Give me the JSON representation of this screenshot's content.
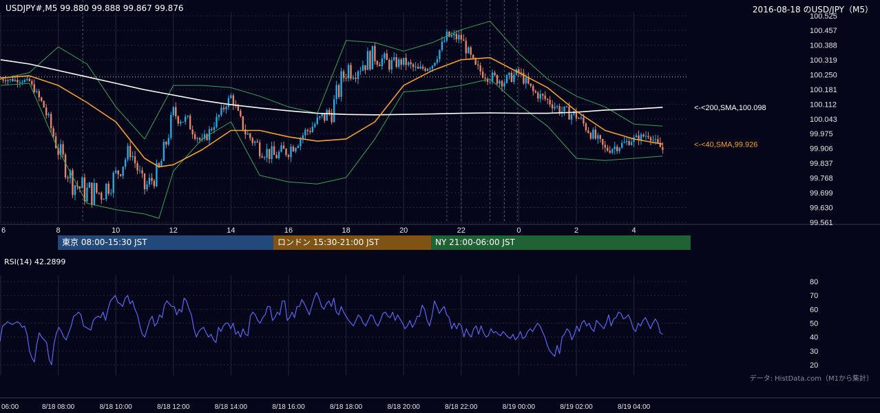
{
  "header": {
    "symbol_info": "USDJPY#,M5 99.880 99.888 99.867 99.876",
    "chart_title": "2016-08-18 のUSD/JPY（M5）"
  },
  "credit": "データ: HistData.com（M1から集計）",
  "colors": {
    "background": "#06061a",
    "candle_up": "#29a9e0",
    "candle_down": "#e2866a",
    "sma40": "#f4a233",
    "sma200": "#ffffff",
    "bollinger": "#3ea356",
    "rsi": "#5c66f0",
    "session_tokyo": "#23497a",
    "session_london": "#7e5314",
    "session_ny": "#1f6233"
  },
  "sessions": [
    {
      "label": "東京 08:00-15:30 JST",
      "color": "#23497a"
    },
    {
      "label": "ロンドン 15:30-21:00 JST",
      "color": "#7e5314"
    },
    {
      "label": "NY 21:00-06:00 JST",
      "color": "#1f6233"
    }
  ],
  "chart_data": [
    {
      "type": "candlestick",
      "ylim": [
        99.561,
        100.525
      ],
      "y_ticks": [
        "100.525",
        "100.457",
        "100.388",
        "100.319",
        "100.250",
        "100.181",
        "100.112",
        "100.043",
        "99.975",
        "99.906",
        "99.837",
        "99.768",
        "99.699",
        "99.630",
        "99.561"
      ],
      "x_ticks": [
        "6",
        "8",
        "10",
        "12",
        "14",
        "16",
        "18",
        "20",
        "22",
        "0",
        "2",
        "4"
      ],
      "reference_line": 100.24,
      "series": [
        {
          "name": "<-<200,SMA,100.098",
          "type": "line",
          "points": [
            [
              6,
              100.32
            ],
            [
              7,
              100.3
            ],
            [
              8,
              100.27
            ],
            [
              9,
              100.24
            ],
            [
              10,
              100.21
            ],
            [
              11,
              100.18
            ],
            [
              12,
              100.155
            ],
            [
              13,
              100.13
            ],
            [
              14,
              100.11
            ],
            [
              15,
              100.095
            ],
            [
              16,
              100.082
            ],
            [
              17,
              100.07
            ],
            [
              18,
              100.065
            ],
            [
              19,
              100.063
            ],
            [
              20,
              100.065
            ],
            [
              21,
              100.067
            ],
            [
              22,
              100.07
            ],
            [
              23,
              100.072
            ],
            [
              24,
              100.07
            ],
            [
              25,
              100.07
            ],
            [
              26,
              100.075
            ],
            [
              27,
              100.085
            ],
            [
              28,
              100.09
            ],
            [
              29,
              100.098
            ]
          ]
        },
        {
          "name": "<-<40,SMA,99.926",
          "type": "line",
          "points": [
            [
              6,
              100.235
            ],
            [
              7,
              100.245
            ],
            [
              8,
              100.2
            ],
            [
              9,
              100.12
            ],
            [
              10,
              100.03
            ],
            [
              11,
              99.86
            ],
            [
              11.5,
              99.82
            ],
            [
              12,
              99.83
            ],
            [
              13,
              99.9
            ],
            [
              14,
              99.99
            ],
            [
              15,
              99.99
            ],
            [
              16,
              99.96
            ],
            [
              17,
              99.94
            ],
            [
              18,
              99.95
            ],
            [
              19,
              100.03
            ],
            [
              20,
              100.2
            ],
            [
              21,
              100.27
            ],
            [
              22,
              100.32
            ],
            [
              23,
              100.33
            ],
            [
              24,
              100.26
            ],
            [
              25,
              100.19
            ],
            [
              26,
              100.08
            ],
            [
              27,
              99.99
            ],
            [
              28,
              99.95
            ],
            [
              29,
              99.926
            ]
          ]
        },
        {
          "name": "Bollinger upper",
          "type": "line",
          "points": [
            [
              6,
              100.23
            ],
            [
              7,
              100.26
            ],
            [
              8,
              100.38
            ],
            [
              9,
              100.3
            ],
            [
              10,
              100.1
            ],
            [
              11,
              99.95
            ],
            [
              12,
              100.2
            ],
            [
              13,
              100.2
            ],
            [
              14,
              100.19
            ],
            [
              15,
              100.15
            ],
            [
              16,
              100.1
            ],
            [
              17,
              100.07
            ],
            [
              18,
              100.41
            ],
            [
              19,
              100.4
            ],
            [
              20,
              100.36
            ],
            [
              21,
              100.4
            ],
            [
              22,
              100.46
            ],
            [
              23,
              100.5
            ],
            [
              24,
              100.35
            ],
            [
              25,
              100.23
            ],
            [
              26,
              100.15
            ],
            [
              27,
              100.1
            ],
            [
              28,
              100.02
            ],
            [
              29,
              100.01
            ]
          ]
        },
        {
          "name": "Bollinger lower",
          "type": "line",
          "points": [
            [
              6,
              100.2
            ],
            [
              7,
              100.21
            ],
            [
              8,
              99.9
            ],
            [
              9,
              99.65
            ],
            [
              10,
              99.62
            ],
            [
              11,
              99.6
            ],
            [
              11.5,
              99.58
            ],
            [
              12,
              99.8
            ],
            [
              13,
              99.95
            ],
            [
              14,
              100.03
            ],
            [
              15,
              99.78
            ],
            [
              16,
              99.75
            ],
            [
              17,
              99.74
            ],
            [
              18,
              99.77
            ],
            [
              19,
              99.95
            ],
            [
              20,
              100.17
            ],
            [
              21,
              100.18
            ],
            [
              22,
              100.2
            ],
            [
              23,
              100.23
            ],
            [
              24,
              100.11
            ],
            [
              25,
              100.01
            ],
            [
              26,
              99.86
            ],
            [
              27,
              99.85
            ],
            [
              28,
              99.86
            ],
            [
              29,
              99.87
            ]
          ]
        },
        {
          "name": "candles",
          "type": "candlestick",
          "close_path": [
            [
              6,
              100.23
            ],
            [
              7,
              100.22
            ],
            [
              7.5,
              100.1
            ],
            [
              8,
              99.9
            ],
            [
              8.5,
              99.75
            ],
            [
              9,
              99.7
            ],
            [
              9.5,
              99.7
            ],
            [
              10,
              99.78
            ],
            [
              10.5,
              99.9
            ],
            [
              11,
              99.72
            ],
            [
              11.5,
              99.8
            ],
            [
              12,
              100.07
            ],
            [
              12.5,
              100.03
            ],
            [
              13,
              99.93
            ],
            [
              13.5,
              100.04
            ],
            [
              14,
              100.15
            ],
            [
              14.5,
              99.98
            ],
            [
              15,
              99.91
            ],
            [
              15.5,
              99.87
            ],
            [
              16,
              99.9
            ],
            [
              16.5,
              99.97
            ],
            [
              17,
              100.03
            ],
            [
              17.5,
              100.08
            ],
            [
              18,
              100.28
            ],
            [
              18.5,
              100.3
            ],
            [
              19,
              100.34
            ],
            [
              19.5,
              100.3
            ],
            [
              20,
              100.31
            ],
            [
              20.5,
              100.27
            ],
            [
              21,
              100.3
            ],
            [
              21.5,
              100.43
            ],
            [
              22,
              100.42
            ],
            [
              22.5,
              100.28
            ],
            [
              23,
              100.24
            ],
            [
              23.5,
              100.22
            ],
            [
              24,
              100.26
            ],
            [
              24.5,
              100.17
            ],
            [
              25,
              100.13
            ],
            [
              25.5,
              100.08
            ],
            [
              26,
              100.06
            ],
            [
              26.5,
              99.98
            ],
            [
              27,
              99.9
            ],
            [
              27.5,
              99.92
            ],
            [
              28,
              99.95
            ],
            [
              28.5,
              99.97
            ],
            [
              29,
              99.9
            ]
          ]
        }
      ]
    },
    {
      "type": "line",
      "title": "RSI(14) 42.2899",
      "ylim": [
        15,
        85
      ],
      "y_ticks": [
        "80",
        "70",
        "60",
        "50",
        "40",
        "30",
        "20"
      ],
      "x_ticks": [
        "06:00",
        "8/18 08:00",
        "8/18 10:00",
        "8/18 12:00",
        "8/18 14:00",
        "8/18 16:00",
        "8/18 18:00",
        "8/18 20:00",
        "8/18 22:00",
        "8/19 00:00",
        "8/19 02:00",
        "8/19 04:00"
      ],
      "series": [
        {
          "name": "RSI(14)",
          "values": [
            37,
            48,
            49,
            51,
            50,
            49,
            50,
            51,
            50,
            47,
            48,
            42,
            30,
            25,
            22,
            35,
            43,
            40,
            38,
            36,
            24,
            20,
            35,
            43,
            47,
            44,
            40,
            38,
            43,
            48,
            55,
            56,
            58,
            56,
            48,
            47,
            46,
            45,
            52,
            54,
            55,
            54,
            58,
            52,
            60,
            66,
            68,
            70,
            65,
            64,
            62,
            68,
            70,
            64,
            66,
            60,
            56,
            48,
            42,
            40,
            46,
            52,
            55,
            48,
            50,
            56,
            54,
            63,
            66,
            64,
            62,
            62,
            56,
            60,
            58,
            68,
            66,
            60,
            56,
            46,
            40,
            44,
            46,
            47,
            43,
            40,
            42,
            38,
            36,
            47,
            44,
            48,
            50,
            50,
            46,
            50,
            42,
            44,
            40,
            46,
            42,
            41,
            55,
            58,
            56,
            52,
            50,
            54,
            56,
            62,
            62,
            52,
            54,
            58,
            56,
            66,
            66,
            52,
            54,
            58,
            54,
            62,
            62,
            67,
            64,
            60,
            56,
            62,
            68,
            72,
            68,
            62,
            60,
            64,
            66,
            62,
            68,
            58,
            56,
            62,
            58,
            55,
            52,
            50,
            48,
            52,
            56,
            54,
            50,
            48,
            52,
            56,
            55,
            50,
            48,
            52,
            57,
            58,
            55,
            54,
            58,
            52,
            56,
            53,
            50,
            46,
            48,
            52,
            47,
            50,
            55,
            55,
            63,
            60,
            52,
            48,
            55,
            66,
            62,
            57,
            60,
            62,
            56,
            54,
            46,
            50,
            46,
            50,
            48,
            40,
            46,
            42,
            40,
            46,
            48,
            42,
            48,
            43,
            40,
            41,
            46,
            43,
            44,
            42,
            41,
            44,
            42,
            40,
            39,
            42,
            38,
            40,
            44,
            39,
            40,
            44,
            46,
            44,
            47,
            50,
            48,
            44,
            40,
            34,
            30,
            28,
            26,
            34,
            28,
            40,
            42,
            46,
            44,
            38,
            42,
            48,
            44,
            50,
            52,
            48,
            50,
            46,
            44,
            52,
            50,
            48,
            46,
            50,
            56,
            48,
            53,
            54,
            58,
            57,
            53,
            54,
            56,
            52,
            46,
            44,
            50,
            48,
            52,
            54,
            50,
            46,
            50,
            53,
            50,
            43,
            42
          ]
        }
      ]
    }
  ]
}
